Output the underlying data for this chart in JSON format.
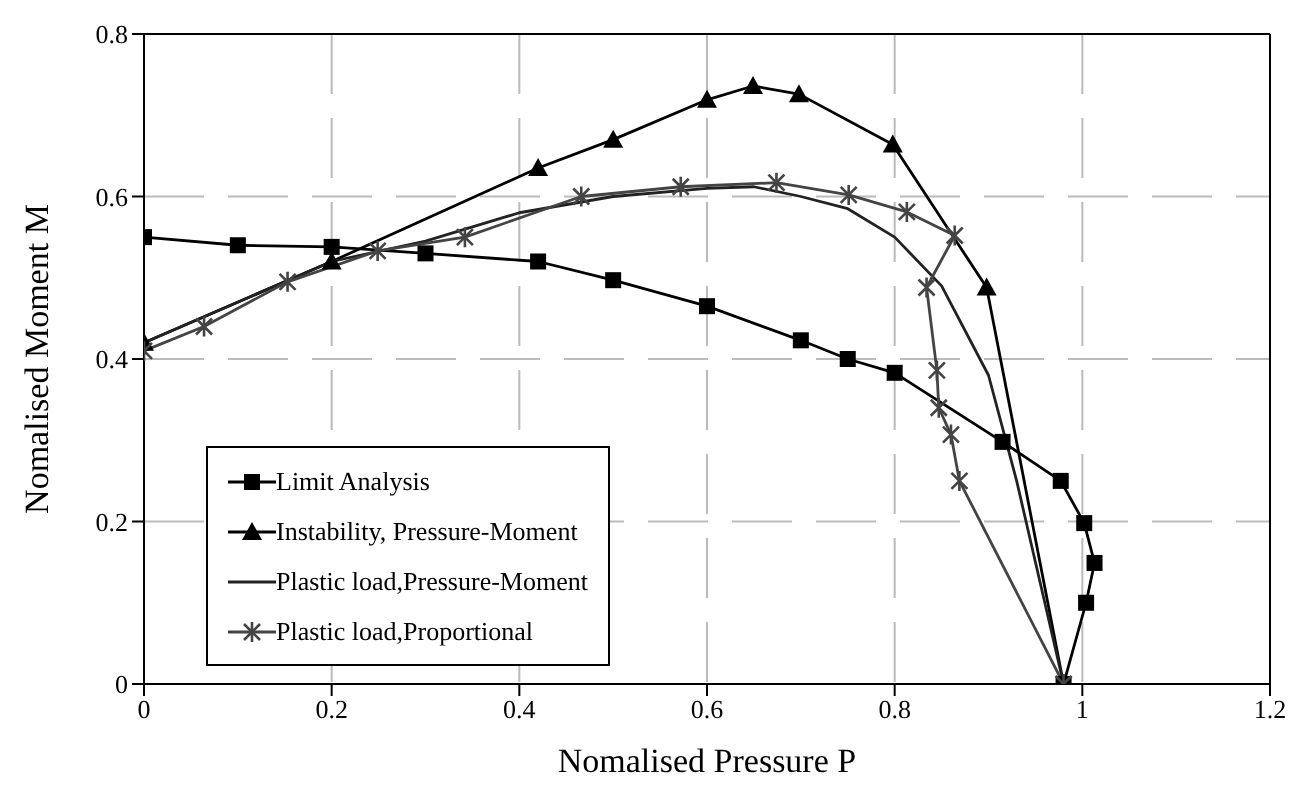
{
  "chart_data": {
    "type": "line",
    "xlabel": "Nomalised Pressure P",
    "ylabel": "Nomalised Moment M",
    "xlim": [
      0,
      1.2
    ],
    "xticks": [
      0,
      0.2,
      0.4,
      0.6,
      0.8,
      1,
      1.2
    ],
    "ylim": [
      0,
      0.8
    ],
    "yticks": [
      0,
      0.2,
      0.4,
      0.6,
      0.8
    ],
    "grid": true,
    "legend": "bottom left",
    "series": [
      {
        "name": "Limit Analysis",
        "color": "#000000",
        "marker": "square",
        "x": [
          0,
          0.1,
          0.2,
          0.3,
          0.42,
          0.5,
          0.6,
          0.7,
          0.75,
          0.8,
          0.915,
          0.977,
          1.002,
          1.013,
          1.004,
          0.98
        ],
        "values": [
          0.55,
          0.54,
          0.538,
          0.53,
          0.52,
          0.497,
          0.465,
          0.423,
          0.4,
          0.383,
          0.298,
          0.25,
          0.198,
          0.149,
          0.1,
          0
        ]
      },
      {
        "name": "Instability, Pressure-Moment",
        "color": "#000000",
        "marker": "triangle",
        "x": [
          0,
          0.2,
          0.42,
          0.5,
          0.6,
          0.649,
          0.698,
          0.798,
          0.898,
          0.98
        ],
        "values": [
          0.42,
          0.52,
          0.635,
          0.67,
          0.719,
          0.736,
          0.726,
          0.664,
          0.488,
          0
        ]
      },
      {
        "name": "Plastic load,Pressure-Moment",
        "color": "#222222",
        "marker": "none",
        "x": [
          0,
          0.2,
          0.3,
          0.4,
          0.5,
          0.6,
          0.65,
          0.7,
          0.75,
          0.8,
          0.85,
          0.9,
          0.93,
          0.96,
          0.98
        ],
        "values": [
          0.42,
          0.52,
          0.545,
          0.58,
          0.6,
          0.61,
          0.612,
          0.6,
          0.585,
          0.55,
          0.49,
          0.38,
          0.25,
          0.1,
          0
        ]
      },
      {
        "name": "Plastic load,Proportional",
        "color": "#444444",
        "marker": "cross",
        "x": [
          0,
          0.064,
          0.153,
          0.249,
          0.342,
          0.466,
          0.572,
          0.674,
          0.751,
          0.813,
          0.864,
          0.834,
          0.845,
          0.847,
          0.86,
          0.869,
          0.98
        ],
        "values": [
          0.41,
          0.44,
          0.495,
          0.533,
          0.55,
          0.6,
          0.612,
          0.617,
          0.602,
          0.581,
          0.552,
          0.488,
          0.386,
          0.34,
          0.307,
          0.25,
          0
        ]
      }
    ]
  }
}
